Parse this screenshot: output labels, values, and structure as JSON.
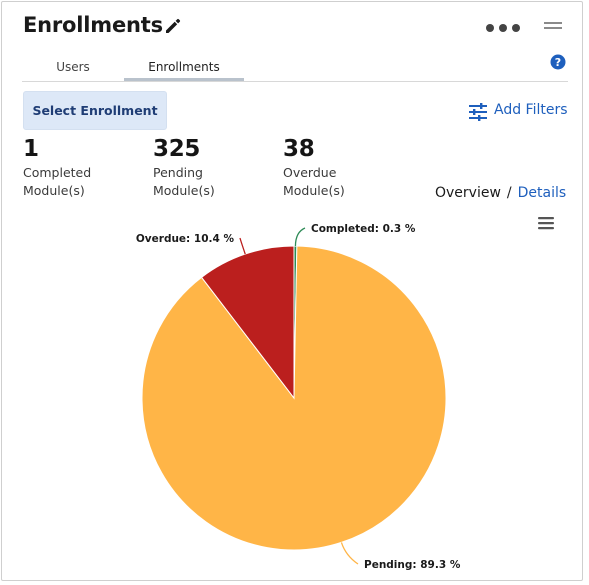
{
  "header": {
    "title": "Enrollments"
  },
  "tabs": [
    {
      "label": "Users"
    },
    {
      "label": "Enrollments"
    }
  ],
  "actions": {
    "select_enrollment": "Select Enrollment",
    "add_filters": "Add Filters"
  },
  "stats": [
    {
      "value": "1",
      "label_line1": "Completed",
      "label_line2": "Module(s)"
    },
    {
      "value": "325",
      "label_line1": "Pending",
      "label_line2": "Module(s)"
    },
    {
      "value": "38",
      "label_line1": "Overdue",
      "label_line2": "Module(s)"
    }
  ],
  "view_switch": {
    "overview": "Overview",
    "separator": "/",
    "details": "Details"
  },
  "chart_data": {
    "type": "pie",
    "slices": [
      {
        "name": "Pending",
        "value": 89.3,
        "label": "Pending: 89.3 %",
        "color": "#ffb547"
      },
      {
        "name": "Overdue",
        "value": 10.4,
        "label": "Overdue: 10.4 %",
        "color": "#bb1f1e"
      },
      {
        "name": "Completed",
        "value": 0.3,
        "label": "Completed: 0.3 %",
        "color": "#2e8b57"
      }
    ]
  },
  "colors": {
    "accent": "#1e5fbd",
    "button_bg": "#dde8f7"
  },
  "icons": [
    "pencil-icon",
    "more-horizontal-icon",
    "collapse-icon",
    "help-icon",
    "filter-sliders-icon",
    "hamburger-menu-icon"
  ]
}
